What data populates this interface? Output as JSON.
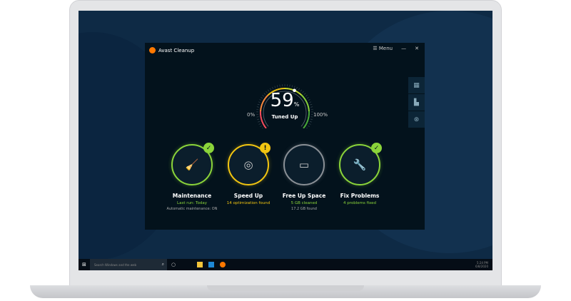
{
  "app": {
    "title": "Avast Cleanup",
    "menu_label": "Menu",
    "minimize": "—",
    "close": "✕"
  },
  "gauge": {
    "value": 59,
    "value_text": "59",
    "unit": "%",
    "label": "Tuned Up",
    "min_label": "0%",
    "max_label": "100%"
  },
  "side_icons": [
    "grid-icon",
    "chart-icon",
    "help-icon"
  ],
  "tiles": [
    {
      "name": "Maintenance",
      "status": "Last run: Today",
      "sub": "Automatic maintenance: ON",
      "color": "#8bd43a",
      "badge": "✓",
      "icon": "🧹"
    },
    {
      "name": "Speed Up",
      "status": "14 optimization found",
      "sub": "",
      "color": "#f2c511",
      "badge": "!",
      "icon": "◎"
    },
    {
      "name": "Free Up Space",
      "status": "5 GB cleaned",
      "sub": "17.2 GB found",
      "color": "#8a9096",
      "badge": "",
      "icon": "▭"
    },
    {
      "name": "Fix Problems",
      "status": "4 problems fixed",
      "sub": "",
      "color": "#8bd43a",
      "badge": "✓",
      "icon": "🔧"
    }
  ],
  "taskbar": {
    "search_placeholder": "Search Windows and the web",
    "time": "5:24 PM",
    "date": "6/8/2020"
  }
}
